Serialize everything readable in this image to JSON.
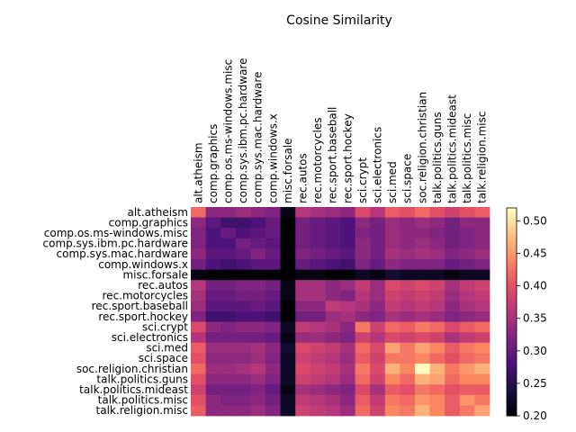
{
  "chart_data": {
    "type": "heatmap",
    "title": "Cosine Similarity",
    "xlabel": "",
    "ylabel": "",
    "categories": [
      "alt.atheism",
      "comp.graphics",
      "comp.os.ms-windows.misc",
      "comp.sys.ibm.pc.hardware",
      "comp.sys.mac.hardware",
      "comp.windows.x",
      "misc.forsale",
      "rec.autos",
      "rec.motorcycles",
      "rec.sport.baseball",
      "rec.sport.hockey",
      "sci.crypt",
      "sci.electronics",
      "sci.med",
      "sci.space",
      "soc.religion.christian",
      "talk.politics.guns",
      "talk.politics.mideast",
      "talk.politics.misc",
      "talk.religion.misc"
    ],
    "values": [
      [
        0.42,
        0.33,
        0.33,
        0.34,
        0.33,
        0.32,
        0.21,
        0.36,
        0.35,
        0.34,
        0.33,
        0.39,
        0.36,
        0.41,
        0.4,
        0.42,
        0.4,
        0.38,
        0.4,
        0.41
      ],
      [
        0.33,
        0.29,
        0.27,
        0.27,
        0.28,
        0.3,
        0.2,
        0.31,
        0.3,
        0.29,
        0.28,
        0.33,
        0.31,
        0.34,
        0.33,
        0.34,
        0.33,
        0.31,
        0.33,
        0.33
      ],
      [
        0.32,
        0.28,
        0.3,
        0.28,
        0.29,
        0.3,
        0.2,
        0.31,
        0.3,
        0.29,
        0.28,
        0.32,
        0.31,
        0.34,
        0.33,
        0.33,
        0.32,
        0.31,
        0.32,
        0.33
      ],
      [
        0.32,
        0.28,
        0.28,
        0.31,
        0.3,
        0.29,
        0.2,
        0.31,
        0.3,
        0.29,
        0.28,
        0.33,
        0.31,
        0.34,
        0.33,
        0.34,
        0.33,
        0.31,
        0.32,
        0.33
      ],
      [
        0.33,
        0.29,
        0.29,
        0.3,
        0.32,
        0.3,
        0.2,
        0.32,
        0.31,
        0.3,
        0.29,
        0.33,
        0.31,
        0.35,
        0.34,
        0.35,
        0.34,
        0.32,
        0.33,
        0.34
      ],
      [
        0.31,
        0.28,
        0.27,
        0.28,
        0.29,
        0.29,
        0.2,
        0.3,
        0.29,
        0.28,
        0.27,
        0.32,
        0.3,
        0.33,
        0.32,
        0.32,
        0.32,
        0.3,
        0.31,
        0.32
      ],
      [
        0.21,
        0.2,
        0.2,
        0.2,
        0.2,
        0.2,
        0.2,
        0.21,
        0.21,
        0.2,
        0.2,
        0.22,
        0.21,
        0.23,
        0.22,
        0.22,
        0.22,
        0.21,
        0.22,
        0.22
      ],
      [
        0.36,
        0.31,
        0.31,
        0.32,
        0.32,
        0.31,
        0.21,
        0.35,
        0.35,
        0.33,
        0.34,
        0.37,
        0.34,
        0.39,
        0.38,
        0.39,
        0.38,
        0.35,
        0.37,
        0.38
      ],
      [
        0.35,
        0.3,
        0.3,
        0.31,
        0.31,
        0.3,
        0.21,
        0.35,
        0.35,
        0.33,
        0.32,
        0.36,
        0.34,
        0.38,
        0.37,
        0.38,
        0.37,
        0.34,
        0.36,
        0.37
      ],
      [
        0.34,
        0.29,
        0.29,
        0.29,
        0.3,
        0.29,
        0.2,
        0.33,
        0.33,
        0.37,
        0.36,
        0.35,
        0.33,
        0.37,
        0.36,
        0.37,
        0.36,
        0.33,
        0.35,
        0.36
      ],
      [
        0.32,
        0.27,
        0.27,
        0.28,
        0.28,
        0.27,
        0.2,
        0.31,
        0.31,
        0.34,
        0.35,
        0.33,
        0.32,
        0.35,
        0.34,
        0.35,
        0.34,
        0.32,
        0.33,
        0.34
      ],
      [
        0.39,
        0.33,
        0.32,
        0.33,
        0.33,
        0.32,
        0.22,
        0.37,
        0.36,
        0.35,
        0.33,
        0.43,
        0.38,
        0.42,
        0.41,
        0.43,
        0.42,
        0.39,
        0.41,
        0.42
      ],
      [
        0.36,
        0.31,
        0.31,
        0.31,
        0.31,
        0.3,
        0.21,
        0.34,
        0.34,
        0.33,
        0.32,
        0.38,
        0.36,
        0.39,
        0.38,
        0.39,
        0.38,
        0.35,
        0.37,
        0.38
      ],
      [
        0.41,
        0.34,
        0.34,
        0.34,
        0.35,
        0.33,
        0.23,
        0.39,
        0.38,
        0.37,
        0.35,
        0.42,
        0.39,
        0.46,
        0.43,
        0.46,
        0.44,
        0.41,
        0.43,
        0.44
      ],
      [
        0.4,
        0.33,
        0.33,
        0.33,
        0.34,
        0.32,
        0.22,
        0.38,
        0.37,
        0.36,
        0.34,
        0.41,
        0.38,
        0.43,
        0.43,
        0.44,
        0.42,
        0.4,
        0.42,
        0.43
      ],
      [
        0.42,
        0.34,
        0.34,
        0.35,
        0.36,
        0.33,
        0.22,
        0.39,
        0.38,
        0.37,
        0.35,
        0.43,
        0.39,
        0.47,
        0.44,
        0.52,
        0.47,
        0.43,
        0.45,
        0.47
      ],
      [
        0.4,
        0.33,
        0.33,
        0.33,
        0.34,
        0.32,
        0.22,
        0.38,
        0.37,
        0.36,
        0.34,
        0.42,
        0.38,
        0.44,
        0.42,
        0.47,
        0.46,
        0.42,
        0.44,
        0.44
      ],
      [
        0.38,
        0.31,
        0.31,
        0.31,
        0.32,
        0.3,
        0.21,
        0.35,
        0.34,
        0.33,
        0.32,
        0.39,
        0.35,
        0.41,
        0.4,
        0.43,
        0.42,
        0.4,
        0.41,
        0.41
      ],
      [
        0.4,
        0.33,
        0.32,
        0.32,
        0.33,
        0.31,
        0.22,
        0.37,
        0.36,
        0.35,
        0.33,
        0.41,
        0.37,
        0.43,
        0.42,
        0.45,
        0.44,
        0.41,
        0.45,
        0.43
      ],
      [
        0.41,
        0.33,
        0.33,
        0.33,
        0.34,
        0.32,
        0.22,
        0.38,
        0.37,
        0.36,
        0.34,
        0.42,
        0.38,
        0.44,
        0.43,
        0.47,
        0.44,
        0.41,
        0.43,
        0.46
      ]
    ],
    "colormap": "magma",
    "vmin": 0.2,
    "vmax": 0.52,
    "colorbar_ticks": [
      "0.50",
      "0.45",
      "0.40",
      "0.35",
      "0.30",
      "0.25",
      "0.20"
    ],
    "colorbar_tick_values": [
      0.5,
      0.45,
      0.4,
      0.35,
      0.3,
      0.25,
      0.2
    ],
    "x_tick_position": "top",
    "legend": "colorbar-right",
    "grid": false
  }
}
